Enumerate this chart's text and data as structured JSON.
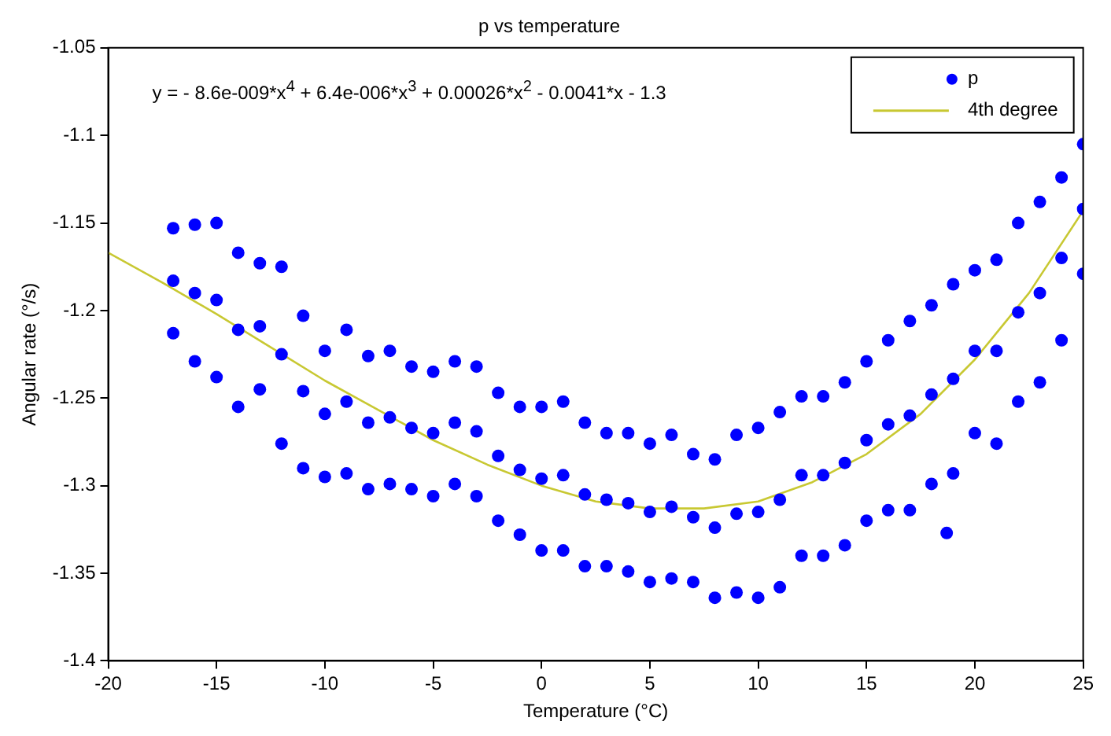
{
  "chart_data": {
    "type": "scatter",
    "title": "p vs temperature",
    "xlabel": "Temperature (°C)",
    "ylabel": "Angular rate (°/s)",
    "annotations": [
      "y = - 8.6e-009*x$^{4}$ + 6.4e-006*x$^{3}$ + 0.00026*x$^{2}$ - 0.0041*x - 1.3"
    ],
    "xlim": [
      -20,
      25
    ],
    "ylim": [
      -1.4,
      -1.05
    ],
    "xticks": [
      -20,
      -15,
      -10,
      -5,
      0,
      5,
      10,
      15,
      20,
      25
    ],
    "yticks": [
      -1.4,
      -1.35,
      -1.3,
      -1.25,
      -1.2,
      -1.15,
      -1.1,
      -1.05
    ],
    "grid": false,
    "legend": "top right",
    "series": [
      {
        "name": "p",
        "type": "scatter",
        "color": "#0000ff",
        "marker": "circle",
        "x": [
          -17,
          -17,
          -17,
          -16,
          -16,
          -16,
          -15,
          -15,
          -15,
          -14,
          -14,
          -14,
          -13,
          -13,
          -13,
          -12,
          -12,
          -12,
          -11,
          -11,
          -11,
          -10,
          -10,
          -10,
          -9,
          -9,
          -9,
          -8,
          -8,
          -8,
          -7,
          -7,
          -7,
          -6,
          -6,
          -6,
          -5,
          -5,
          -5,
          -4,
          -4,
          -4,
          -3,
          -3,
          -3,
          -2,
          -2,
          -2,
          -1,
          -1,
          -1,
          0,
          0,
          0,
          1,
          1,
          1,
          2,
          2,
          2,
          3,
          3,
          3,
          4,
          4,
          4,
          5,
          5,
          5,
          6,
          6,
          6,
          7,
          7,
          7,
          8,
          8,
          8,
          9,
          9,
          9,
          10,
          10,
          10,
          11,
          11,
          11,
          12,
          12,
          12,
          13,
          13,
          13,
          14,
          14,
          14,
          15,
          15,
          15,
          16,
          16,
          16,
          17,
          17,
          17,
          18,
          18,
          18,
          18.7,
          19,
          19,
          19,
          20,
          20,
          20,
          21,
          21,
          21,
          22,
          22,
          22,
          23,
          23,
          23,
          24,
          24,
          24,
          25,
          25,
          25
        ],
        "values": [
          -1.153,
          -1.183,
          -1.213,
          -1.151,
          -1.19,
          -1.229,
          -1.15,
          -1.194,
          -1.238,
          -1.167,
          -1.211,
          -1.255,
          -1.173,
          -1.209,
          -1.245,
          -1.175,
          -1.225,
          -1.276,
          -1.203,
          -1.246,
          -1.29,
          -1.223,
          -1.259,
          -1.295,
          -1.211,
          -1.252,
          -1.293,
          -1.226,
          -1.264,
          -1.302,
          -1.223,
          -1.261,
          -1.299,
          -1.232,
          -1.267,
          -1.302,
          -1.235,
          -1.27,
          -1.306,
          -1.229,
          -1.264,
          -1.299,
          -1.232,
          -1.269,
          -1.306,
          -1.247,
          -1.283,
          -1.32,
          -1.255,
          -1.291,
          -1.328,
          -1.255,
          -1.296,
          -1.337,
          -1.252,
          -1.294,
          -1.337,
          -1.264,
          -1.305,
          -1.346,
          -1.27,
          -1.308,
          -1.346,
          -1.27,
          -1.31,
          -1.349,
          -1.276,
          -1.315,
          -1.355,
          -1.271,
          -1.312,
          -1.353,
          -1.282,
          -1.318,
          -1.355,
          -1.285,
          -1.324,
          -1.364,
          -1.271,
          -1.316,
          -1.361,
          -1.267,
          -1.315,
          -1.364,
          -1.258,
          -1.308,
          -1.358,
          -1.249,
          -1.294,
          -1.34,
          -1.249,
          -1.294,
          -1.34,
          -1.241,
          -1.287,
          -1.334,
          -1.229,
          -1.274,
          -1.32,
          -1.217,
          -1.265,
          -1.314,
          -1.206,
          -1.26,
          -1.314,
          -1.197,
          -1.248,
          -1.299,
          -1.327,
          -1.185,
          -1.239,
          -1.293,
          -1.177,
          -1.223,
          -1.27,
          -1.171,
          -1.223,
          -1.276,
          -1.15,
          -1.201,
          -1.252,
          -1.138,
          -1.19,
          -1.241,
          -1.124,
          -1.17,
          -1.217,
          -1.105,
          -1.142,
          -1.179
        ]
      },
      {
        "name": "4th degree",
        "type": "line",
        "color": "#c8c832",
        "marker": "none",
        "line_style": "solid",
        "x": [
          -20,
          -17.5,
          -15,
          -12.5,
          -10,
          -7.5,
          -5,
          -2.5,
          0,
          2.5,
          5,
          7.5,
          10,
          12.5,
          15,
          17.5,
          20,
          22.5,
          25
        ],
        "values": [
          -1.167,
          -1.184,
          -1.202,
          -1.221,
          -1.24,
          -1.257,
          -1.274,
          -1.288,
          -1.3,
          -1.309,
          -1.313,
          -1.313,
          -1.309,
          -1.298,
          -1.282,
          -1.259,
          -1.228,
          -1.19,
          -1.143
        ]
      }
    ]
  }
}
